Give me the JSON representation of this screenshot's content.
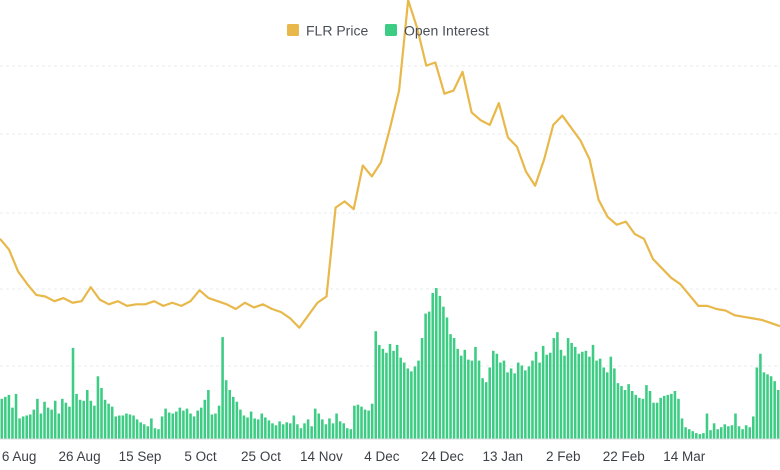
{
  "chart_data": {
    "type": "bar+line",
    "title": "",
    "xlabel": "",
    "ylabel": "",
    "legend_position": "top-center",
    "grid": true,
    "x_tick_labels": [
      "6 Aug",
      "26 Aug",
      "15 Sep",
      "5 Oct",
      "25 Oct",
      "14 Nov",
      "4 Dec",
      "24 Dec",
      "13 Jan",
      "2 Feb",
      "22 Feb",
      "14 Mar"
    ],
    "x_range_days": [
      0,
      258
    ],
    "x_tick_days": [
      4,
      24,
      44,
      64,
      84,
      104,
      124,
      144,
      164,
      184,
      204,
      224
    ],
    "series": [
      {
        "name": "FLR Price",
        "type": "line",
        "color": "#e8b84a",
        "points": [
          [
            0,
            14.5
          ],
          [
            3,
            13.8
          ],
          [
            6,
            12.4
          ],
          [
            9,
            11.6
          ],
          [
            12,
            10.9
          ],
          [
            15,
            10.8
          ],
          [
            18,
            10.5
          ],
          [
            21,
            10.7
          ],
          [
            24,
            10.4
          ],
          [
            27,
            10.5
          ],
          [
            30,
            11.4
          ],
          [
            33,
            10.6
          ],
          [
            36,
            10.3
          ],
          [
            39,
            10.5
          ],
          [
            42,
            10.2
          ],
          [
            45,
            10.3
          ],
          [
            48,
            10.3
          ],
          [
            51,
            10.5
          ],
          [
            54,
            10.2
          ],
          [
            57,
            10.4
          ],
          [
            60,
            10.2
          ],
          [
            63,
            10.5
          ],
          [
            66,
            11.2
          ],
          [
            69,
            10.7
          ],
          [
            72,
            10.5
          ],
          [
            75,
            10.3
          ],
          [
            78,
            10.0
          ],
          [
            81,
            10.4
          ],
          [
            84,
            10.1
          ],
          [
            87,
            10.3
          ],
          [
            90,
            10.0
          ],
          [
            93,
            9.8
          ],
          [
            96,
            9.4
          ],
          [
            99,
            8.8
          ],
          [
            102,
            9.6
          ],
          [
            105,
            10.4
          ],
          [
            108,
            10.8
          ],
          [
            111,
            16.5
          ],
          [
            114,
            16.9
          ],
          [
            117,
            16.4
          ],
          [
            120,
            19.2
          ],
          [
            123,
            18.5
          ],
          [
            126,
            19.4
          ],
          [
            129,
            21.6
          ],
          [
            132,
            24.0
          ],
          [
            135,
            29.8
          ],
          [
            138,
            28.0
          ],
          [
            141,
            25.6
          ],
          [
            144,
            25.8
          ],
          [
            147,
            23.8
          ],
          [
            150,
            24.0
          ],
          [
            153,
            25.2
          ],
          [
            156,
            22.6
          ],
          [
            159,
            22.1
          ],
          [
            162,
            21.8
          ],
          [
            165,
            23.2
          ],
          [
            168,
            21.0
          ],
          [
            171,
            20.4
          ],
          [
            174,
            18.8
          ],
          [
            177,
            17.9
          ],
          [
            180,
            19.6
          ],
          [
            183,
            21.8
          ],
          [
            186,
            22.4
          ],
          [
            189,
            21.6
          ],
          [
            192,
            20.8
          ],
          [
            195,
            19.6
          ],
          [
            198,
            17.0
          ],
          [
            201,
            15.9
          ],
          [
            204,
            15.4
          ],
          [
            207,
            15.6
          ],
          [
            210,
            14.8
          ],
          [
            213,
            14.5
          ],
          [
            216,
            13.2
          ],
          [
            219,
            12.6
          ],
          [
            222,
            12.0
          ],
          [
            225,
            11.6
          ],
          [
            228,
            10.9
          ],
          [
            231,
            10.2
          ],
          [
            234,
            10.2
          ],
          [
            237,
            10.0
          ],
          [
            240,
            9.9
          ],
          [
            243,
            9.6
          ],
          [
            246,
            9.5
          ],
          [
            249,
            9.4
          ],
          [
            252,
            9.3
          ],
          [
            255,
            9.1
          ],
          [
            258,
            8.9
          ]
        ]
      },
      {
        "name": "Open Interest",
        "type": "bar",
        "color": "#3dcc83",
        "values": [
          4.1,
          4.3,
          4.5,
          3.2,
          4.6,
          2.1,
          2.3,
          2.4,
          2.5,
          3.0,
          4.1,
          2.6,
          3.8,
          3.2,
          3.0,
          3.9,
          2.6,
          4.1,
          3.7,
          3.3,
          9.3,
          4.6,
          4.0,
          3.9,
          5.0,
          3.9,
          3.4,
          6.4,
          5.2,
          4.0,
          3.6,
          3.3,
          2.3,
          2.4,
          2.4,
          2.6,
          2.5,
          2.4,
          2.0,
          1.7,
          1.5,
          1.3,
          2.1,
          1.1,
          1.0,
          2.3,
          3.1,
          2.7,
          2.6,
          2.8,
          3.2,
          2.9,
          3.1,
          2.6,
          2.3,
          2.9,
          3.2,
          4.0,
          5.0,
          2.5,
          2.6,
          3.4,
          10.4,
          6.0,
          5.0,
          4.3,
          3.8,
          3.0,
          2.4,
          2.2,
          2.8,
          2.1,
          2.0,
          2.6,
          2.2,
          1.9,
          1.6,
          1.4,
          1.8,
          1.5,
          1.7,
          1.6,
          2.4,
          1.5,
          1.1,
          1.6,
          2.0,
          1.3,
          3.1,
          2.6,
          2.0,
          1.5,
          2.1,
          1.6,
          2.6,
          1.8,
          1.6,
          1.1,
          1.0,
          3.4,
          3.5,
          3.3,
          3.0,
          2.9,
          3.6,
          11.0,
          9.6,
          9.2,
          8.8,
          9.7,
          9.0,
          9.6,
          8.3,
          7.8,
          7.2,
          6.9,
          7.4,
          8.0,
          10.3,
          12.8,
          13.0,
          14.9,
          15.4,
          14.6,
          13.5,
          12.4,
          10.7,
          10.3,
          9.2,
          8.5,
          9.1,
          8.1,
          8.0,
          9.4,
          8.0,
          6.2,
          5.8,
          7.3,
          9.0,
          8.7,
          7.8,
          8.0,
          6.8,
          7.2,
          6.7,
          7.8,
          7.5,
          7.0,
          7.4,
          8.0,
          8.9,
          7.8,
          9.5,
          8.6,
          8.8,
          10.3,
          10.9,
          9.1,
          8.5,
          10.3,
          9.8,
          9.4,
          8.7,
          8.9,
          9.0,
          8.4,
          9.6,
          8.0,
          8.2,
          7.3,
          6.8,
          8.4,
          7.2,
          5.7,
          5.4,
          5.0,
          5.6,
          4.9,
          4.5,
          4.2,
          4.1,
          5.5,
          4.9,
          3.7,
          3.7,
          4.2,
          4.4,
          4.5,
          4.6,
          4.9,
          4.1,
          2.1,
          1.2,
          1.0,
          0.8,
          0.6,
          0.5,
          0.6,
          2.6,
          0.9,
          1.6,
          1.0,
          1.2,
          1.5,
          1.3,
          1.4,
          2.6,
          1.3,
          1.0,
          1.4,
          1.2,
          2.3,
          7.3,
          8.7,
          6.8,
          6.6,
          6.4,
          5.9,
          5.0
        ]
      }
    ]
  }
}
